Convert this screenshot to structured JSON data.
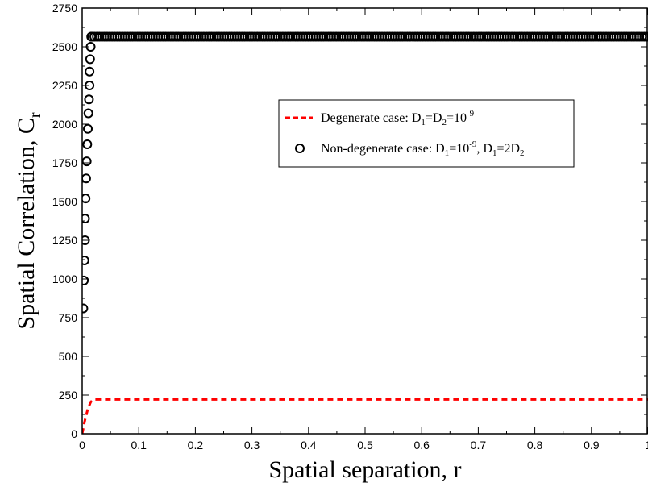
{
  "chart_data": {
    "type": "line",
    "xlabel": "Spatial separation, r",
    "ylabel": {
      "main": "Spatial Correlation, C",
      "sub": "r"
    },
    "xlim": [
      0,
      1
    ],
    "ylim": [
      0,
      2750
    ],
    "x_ticks": [
      "0",
      "0.1",
      "0.2",
      "0.3",
      "0.4",
      "0.5",
      "0.6",
      "0.7",
      "0.8",
      "0.9",
      "1"
    ],
    "y_ticks": [
      "0",
      "250",
      "500",
      "750",
      "1000",
      "1250",
      "1500",
      "1750",
      "2000",
      "2250",
      "2500",
      "2750"
    ],
    "grid": false,
    "legend_position": "center-right",
    "series": [
      {
        "name": "degenerate",
        "style": "dashed-line",
        "color": "#ff0000",
        "legend": {
          "text": "Degenerate case: D",
          "s1": "1",
          "t2": "=D",
          "s2": "2",
          "t3": "=10",
          "sup": "-9"
        },
        "x": [
          0,
          0.005,
          0.01,
          0.015,
          0.02,
          1
        ],
        "y": [
          0,
          90,
          160,
          205,
          222,
          222
        ]
      },
      {
        "name": "non-degenerate",
        "style": "circle-markers",
        "color": "#000000",
        "legend": {
          "text": "Non-degenerate case: D",
          "s1": "1",
          "t2": "=10",
          "sup": "-9",
          "t3": ", D",
          "s2": "1",
          "t4": "=2D",
          "s3": "2"
        },
        "x": [
          0.002,
          0.003,
          0.004,
          0.005,
          0.005,
          0.006,
          0.007,
          0.008,
          0.009,
          0.01,
          0.011,
          0.012,
          0.013,
          0.013,
          0.014,
          0.015,
          0.016,
          0.017
        ],
        "y": [
          810,
          990,
          1120,
          1250,
          1390,
          1520,
          1650,
          1760,
          1870,
          1970,
          2070,
          2160,
          2250,
          2340,
          2420,
          2500,
          2565,
          2565
        ],
        "plateau": {
          "x_start": 0.017,
          "x_end": 1,
          "y": 2565
        }
      }
    ]
  }
}
